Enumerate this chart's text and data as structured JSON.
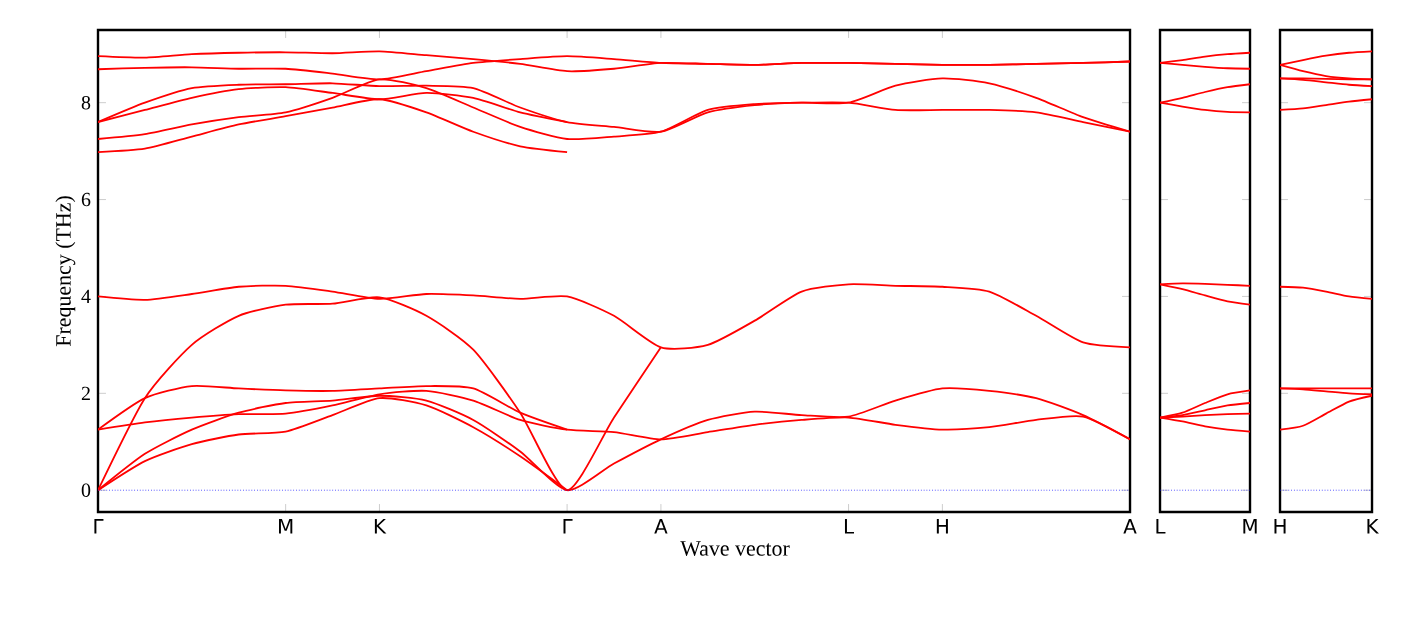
{
  "chart_data": [
    {
      "type": "line",
      "ylabel": "Frequency (THz)",
      "xlabel": "Wave vector",
      "categories": [
        "Γ",
        null,
        null,
        null,
        "M",
        null,
        "K",
        null,
        null,
        null,
        "Γ",
        null,
        "A",
        null,
        null,
        null,
        "L",
        null,
        "H",
        null,
        null,
        null,
        "A"
      ],
      "ylim": [
        -0.45,
        9.5
      ],
      "yticks": [
        0,
        2,
        4,
        6,
        8
      ],
      "ref_lines": [
        {
          "axis": "y",
          "value": 0,
          "color": "#0000ff",
          "line_style": "dotted"
        }
      ],
      "series": [
        {
          "color": "#ff0000",
          "values": [
            8.96,
            8.93,
            9.0,
            9.03,
            9.04,
            9.02,
            9.06,
            8.98,
            8.9,
            8.8,
            8.65,
            8.7,
            8.82,
            8.8,
            8.78,
            8.82,
            8.82,
            8.8,
            8.78,
            8.78,
            8.8,
            8.82,
            8.85
          ]
        },
        {
          "color": "#ff0000",
          "values": [
            8.69,
            8.72,
            8.73,
            8.7,
            8.7,
            8.6,
            8.48,
            8.65,
            8.82,
            8.9,
            8.96,
            8.9,
            8.82,
            8.8,
            8.78,
            8.82,
            8.82,
            8.8,
            8.78,
            8.78,
            8.8,
            8.82,
            8.85
          ]
        },
        {
          "color": "#ff0000",
          "values": [
            7.6,
            8.0,
            8.3,
            8.37,
            8.38,
            8.4,
            8.34,
            8.35,
            8.3,
            7.9,
            7.6,
            7.5,
            7.4,
            7.8,
            7.95,
            8.0,
            8.0,
            8.35,
            8.5,
            8.4,
            8.1,
            7.7,
            7.4
          ]
        },
        {
          "color": "#ff0000",
          "values": [
            7.6,
            7.85,
            8.1,
            8.28,
            8.32,
            8.2,
            8.07,
            8.2,
            8.1,
            7.8,
            7.6,
            null,
            null,
            null,
            null,
            null,
            null,
            null,
            null,
            null,
            null,
            null,
            null
          ]
        },
        {
          "color": "#ff0000",
          "values": [
            7.25,
            7.35,
            7.55,
            7.7,
            7.8,
            8.1,
            8.48,
            8.3,
            7.9,
            7.5,
            7.25,
            7.3,
            7.4,
            7.85,
            7.97,
            8.0,
            8.0,
            7.85,
            7.85,
            7.85,
            7.8,
            7.6,
            7.4
          ]
        },
        {
          "color": "#ff0000",
          "values": [
            6.98,
            7.05,
            7.3,
            7.55,
            7.72,
            7.9,
            8.07,
            7.8,
            7.4,
            7.1,
            6.98,
            null,
            null,
            null,
            null,
            null,
            null,
            null,
            null,
            null,
            null,
            null,
            null
          ]
        },
        {
          "color": "#ff0000",
          "values": [
            4.0,
            3.93,
            4.05,
            4.2,
            4.22,
            4.1,
            3.95,
            4.05,
            4.02,
            3.95,
            4.0,
            3.6,
            2.95,
            3.0,
            3.5,
            4.1,
            4.25,
            4.22,
            4.2,
            4.1,
            3.6,
            3.05,
            2.95
          ]
        },
        {
          "color": "#ff0000",
          "values": [
            0,
            1.9,
            3.0,
            3.6,
            3.83,
            3.85,
            3.98,
            3.6,
            2.9,
            1.6,
            0,
            1.5,
            2.95,
            null,
            null,
            null,
            null,
            null,
            null,
            null,
            null,
            null,
            null
          ]
        },
        {
          "color": "#ff0000",
          "values": [
            0,
            0.6,
            0.95,
            1.15,
            1.21,
            1.55,
            1.9,
            1.75,
            1.3,
            0.7,
            0,
            null,
            null,
            null,
            null,
            null,
            null,
            null,
            null,
            null,
            null,
            null,
            null
          ]
        },
        {
          "color": "#ff0000",
          "values": [
            0,
            0.75,
            1.25,
            1.6,
            1.8,
            1.85,
            1.95,
            1.85,
            1.45,
            0.8,
            0,
            0.55,
            1.05,
            1.45,
            1.62,
            1.55,
            1.52,
            1.85,
            2.1,
            2.05,
            1.9,
            1.55,
            1.05
          ]
        },
        {
          "color": "#ff0000",
          "values": [
            1.25,
            1.4,
            1.5,
            1.57,
            1.58,
            1.75,
            1.98,
            2.05,
            1.85,
            1.45,
            1.25,
            1.2,
            1.05,
            1.2,
            1.35,
            1.45,
            1.5,
            1.35,
            1.25,
            1.3,
            1.45,
            1.52,
            1.05
          ]
        },
        {
          "color": "#ff0000",
          "values": [
            1.25,
            1.9,
            2.15,
            2.1,
            2.06,
            2.05,
            2.1,
            2.15,
            2.1,
            1.6,
            1.25,
            null,
            null,
            null,
            null,
            null,
            null,
            null,
            null,
            null,
            null,
            null,
            null
          ]
        }
      ]
    },
    {
      "type": "line",
      "categories": [
        "L",
        null,
        null,
        null,
        "M"
      ],
      "ylim": [
        -0.45,
        9.5
      ],
      "yticks": [
        0,
        2,
        4,
        6,
        8
      ],
      "tick_labels": "x",
      "ref_lines": [
        {
          "axis": "y",
          "value": 0,
          "color": "#0000ff",
          "line_style": "dotted"
        }
      ],
      "series": [
        {
          "color": "#ff0000",
          "values": [
            8.82,
            8.88,
            8.95,
            9.0,
            9.03
          ]
        },
        {
          "color": "#ff0000",
          "values": [
            8.82,
            8.78,
            8.74,
            8.71,
            8.7
          ]
        },
        {
          "color": "#ff0000",
          "values": [
            8.0,
            8.1,
            8.22,
            8.32,
            8.38
          ]
        },
        {
          "color": "#ff0000",
          "values": [
            8.0,
            7.92,
            7.85,
            7.81,
            7.8
          ]
        },
        {
          "color": "#ff0000",
          "values": [
            4.25,
            4.27,
            4.26,
            4.24,
            4.22
          ]
        },
        {
          "color": "#ff0000",
          "values": [
            4.25,
            4.15,
            4.02,
            3.9,
            3.83
          ]
        },
        {
          "color": "#ff0000",
          "values": [
            1.5,
            1.6,
            1.8,
            1.98,
            2.06
          ]
        },
        {
          "color": "#ff0000",
          "values": [
            1.5,
            1.55,
            1.65,
            1.75,
            1.8
          ]
        },
        {
          "color": "#ff0000",
          "values": [
            1.5,
            1.52,
            1.55,
            1.57,
            1.58
          ]
        },
        {
          "color": "#ff0000",
          "values": [
            1.5,
            1.42,
            1.32,
            1.25,
            1.21
          ]
        }
      ]
    },
    {
      "type": "line",
      "categories": [
        "H",
        null,
        null,
        null,
        "K"
      ],
      "ylim": [
        -0.45,
        9.5
      ],
      "yticks": [
        0,
        2,
        4,
        6,
        8
      ],
      "tick_labels": "x",
      "ref_lines": [
        {
          "axis": "y",
          "value": 0,
          "color": "#0000ff",
          "line_style": "dotted"
        }
      ],
      "series": [
        {
          "color": "#ff0000",
          "values": [
            8.78,
            8.88,
            8.97,
            9.03,
            9.06
          ]
        },
        {
          "color": "#ff0000",
          "values": [
            8.78,
            8.65,
            8.55,
            8.5,
            8.48
          ]
        },
        {
          "color": "#ff0000",
          "values": [
            8.5,
            8.5,
            8.49,
            8.48,
            8.48
          ]
        },
        {
          "color": "#ff0000",
          "values": [
            8.5,
            8.47,
            8.42,
            8.37,
            8.34
          ]
        },
        {
          "color": "#ff0000",
          "values": [
            7.85,
            7.88,
            7.95,
            8.02,
            8.07
          ]
        },
        {
          "color": "#ff0000",
          "values": [
            4.2,
            4.18,
            4.1,
            4.0,
            3.95
          ]
        },
        {
          "color": "#ff0000",
          "values": [
            2.1,
            2.1,
            2.1,
            2.1,
            2.1
          ]
        },
        {
          "color": "#ff0000",
          "values": [
            2.1,
            2.08,
            2.04,
            2.0,
            1.98
          ]
        },
        {
          "color": "#ff0000",
          "values": [
            1.25,
            1.33,
            1.58,
            1.83,
            1.95
          ]
        }
      ]
    }
  ]
}
